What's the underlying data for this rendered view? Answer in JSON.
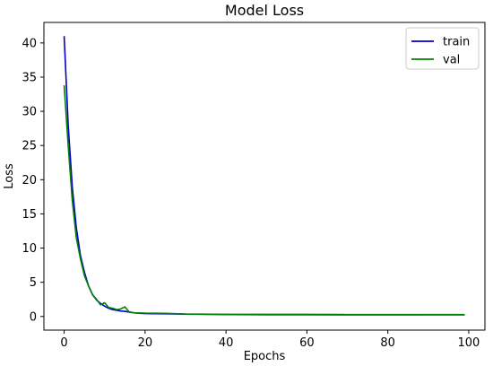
{
  "chart_data": {
    "type": "line",
    "title": "Model Loss",
    "xlabel": "Epochs",
    "ylabel": "Loss",
    "xlim": [
      -5,
      104
    ],
    "ylim": [
      -2,
      43
    ],
    "xticks": [
      0,
      20,
      40,
      60,
      80,
      100
    ],
    "yticks": [
      0,
      5,
      10,
      15,
      20,
      25,
      30,
      35,
      40
    ],
    "grid": false,
    "legend_position": "top-right",
    "series": [
      {
        "name": "train",
        "color": "#0000cc",
        "x": [
          0,
          1,
          2,
          3,
          4,
          5,
          6,
          7,
          8,
          9,
          10,
          11,
          12,
          13,
          14,
          15,
          16,
          17,
          18,
          19,
          20,
          25,
          30,
          40,
          50,
          60,
          70,
          80,
          90,
          99
        ],
        "y": [
          41.0,
          28.0,
          19.0,
          13.0,
          9.0,
          6.5,
          4.5,
          3.2,
          2.4,
          1.9,
          1.5,
          1.2,
          1.0,
          0.9,
          0.8,
          0.75,
          0.65,
          0.55,
          0.5,
          0.45,
          0.42,
          0.38,
          0.33,
          0.28,
          0.26,
          0.25,
          0.24,
          0.24,
          0.23,
          0.23
        ]
      },
      {
        "name": "val",
        "color": "#008000",
        "x": [
          0,
          1,
          2,
          3,
          4,
          5,
          6,
          7,
          8,
          9,
          10,
          11,
          12,
          13,
          14,
          15,
          16,
          17,
          18,
          19,
          20,
          25,
          30,
          40,
          50,
          60,
          70,
          80,
          90,
          99
        ],
        "y": [
          33.8,
          25.0,
          17.0,
          11.5,
          8.5,
          6.0,
          4.5,
          3.2,
          2.5,
          1.7,
          2.0,
          1.3,
          1.2,
          1.0,
          1.1,
          1.4,
          0.7,
          0.55,
          0.5,
          0.5,
          0.48,
          0.45,
          0.35,
          0.3,
          0.3,
          0.3,
          0.28,
          0.28,
          0.27,
          0.27
        ]
      }
    ]
  }
}
